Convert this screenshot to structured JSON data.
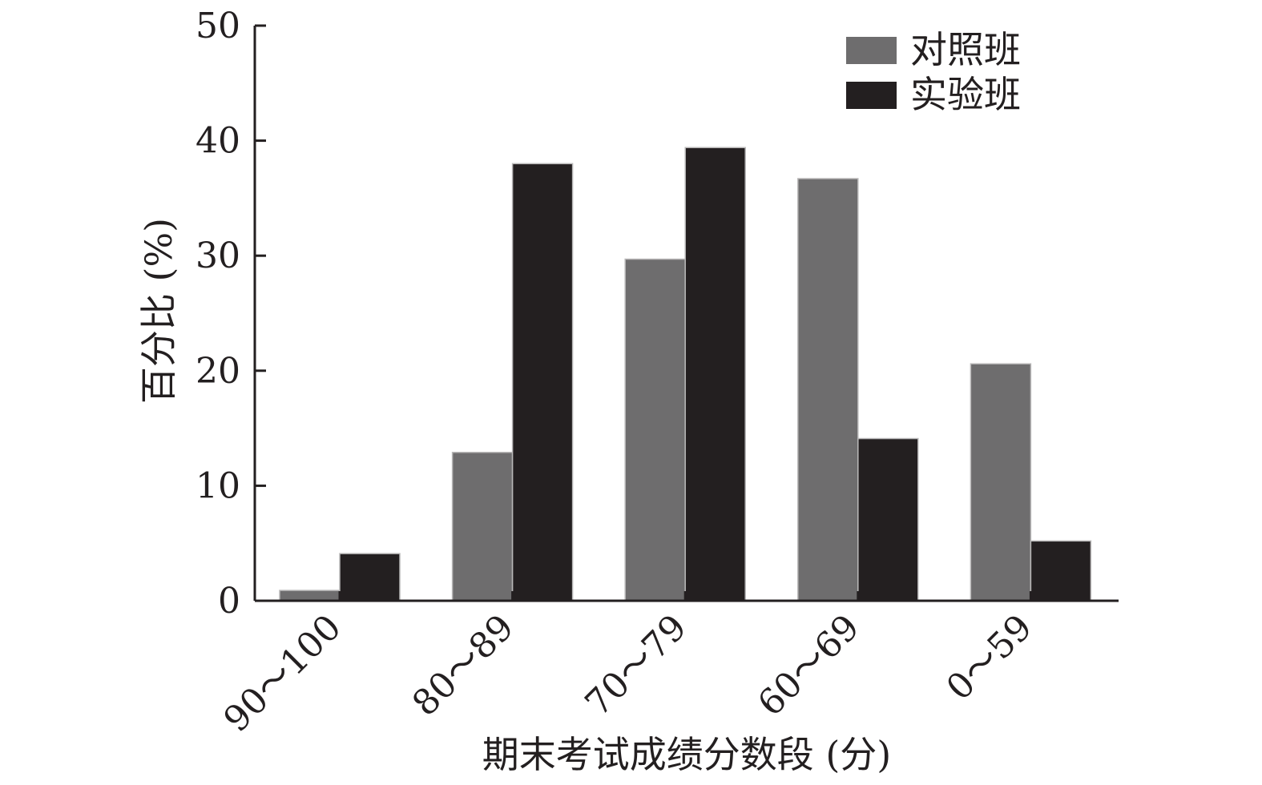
{
  "chart_data": {
    "type": "bar",
    "title": "",
    "xlabel": "期末考试成绩分数段 (分)",
    "ylabel": "百分比 (%)",
    "ylim": [
      0,
      50
    ],
    "yticks": [
      0,
      10,
      20,
      30,
      40,
      50
    ],
    "categories": [
      "90～100",
      "80～89",
      "70～79",
      "60～69",
      "0～59"
    ],
    "series": [
      {
        "name": "对照班",
        "values": [
          0.9,
          12.9,
          29.7,
          36.7,
          20.6
        ],
        "color": "#6e6d6e"
      },
      {
        "name": "实验班",
        "values": [
          4.1,
          38.0,
          39.4,
          14.1,
          5.2
        ],
        "color": "#231f20"
      }
    ],
    "legend_position": "top-right",
    "grid": false
  }
}
